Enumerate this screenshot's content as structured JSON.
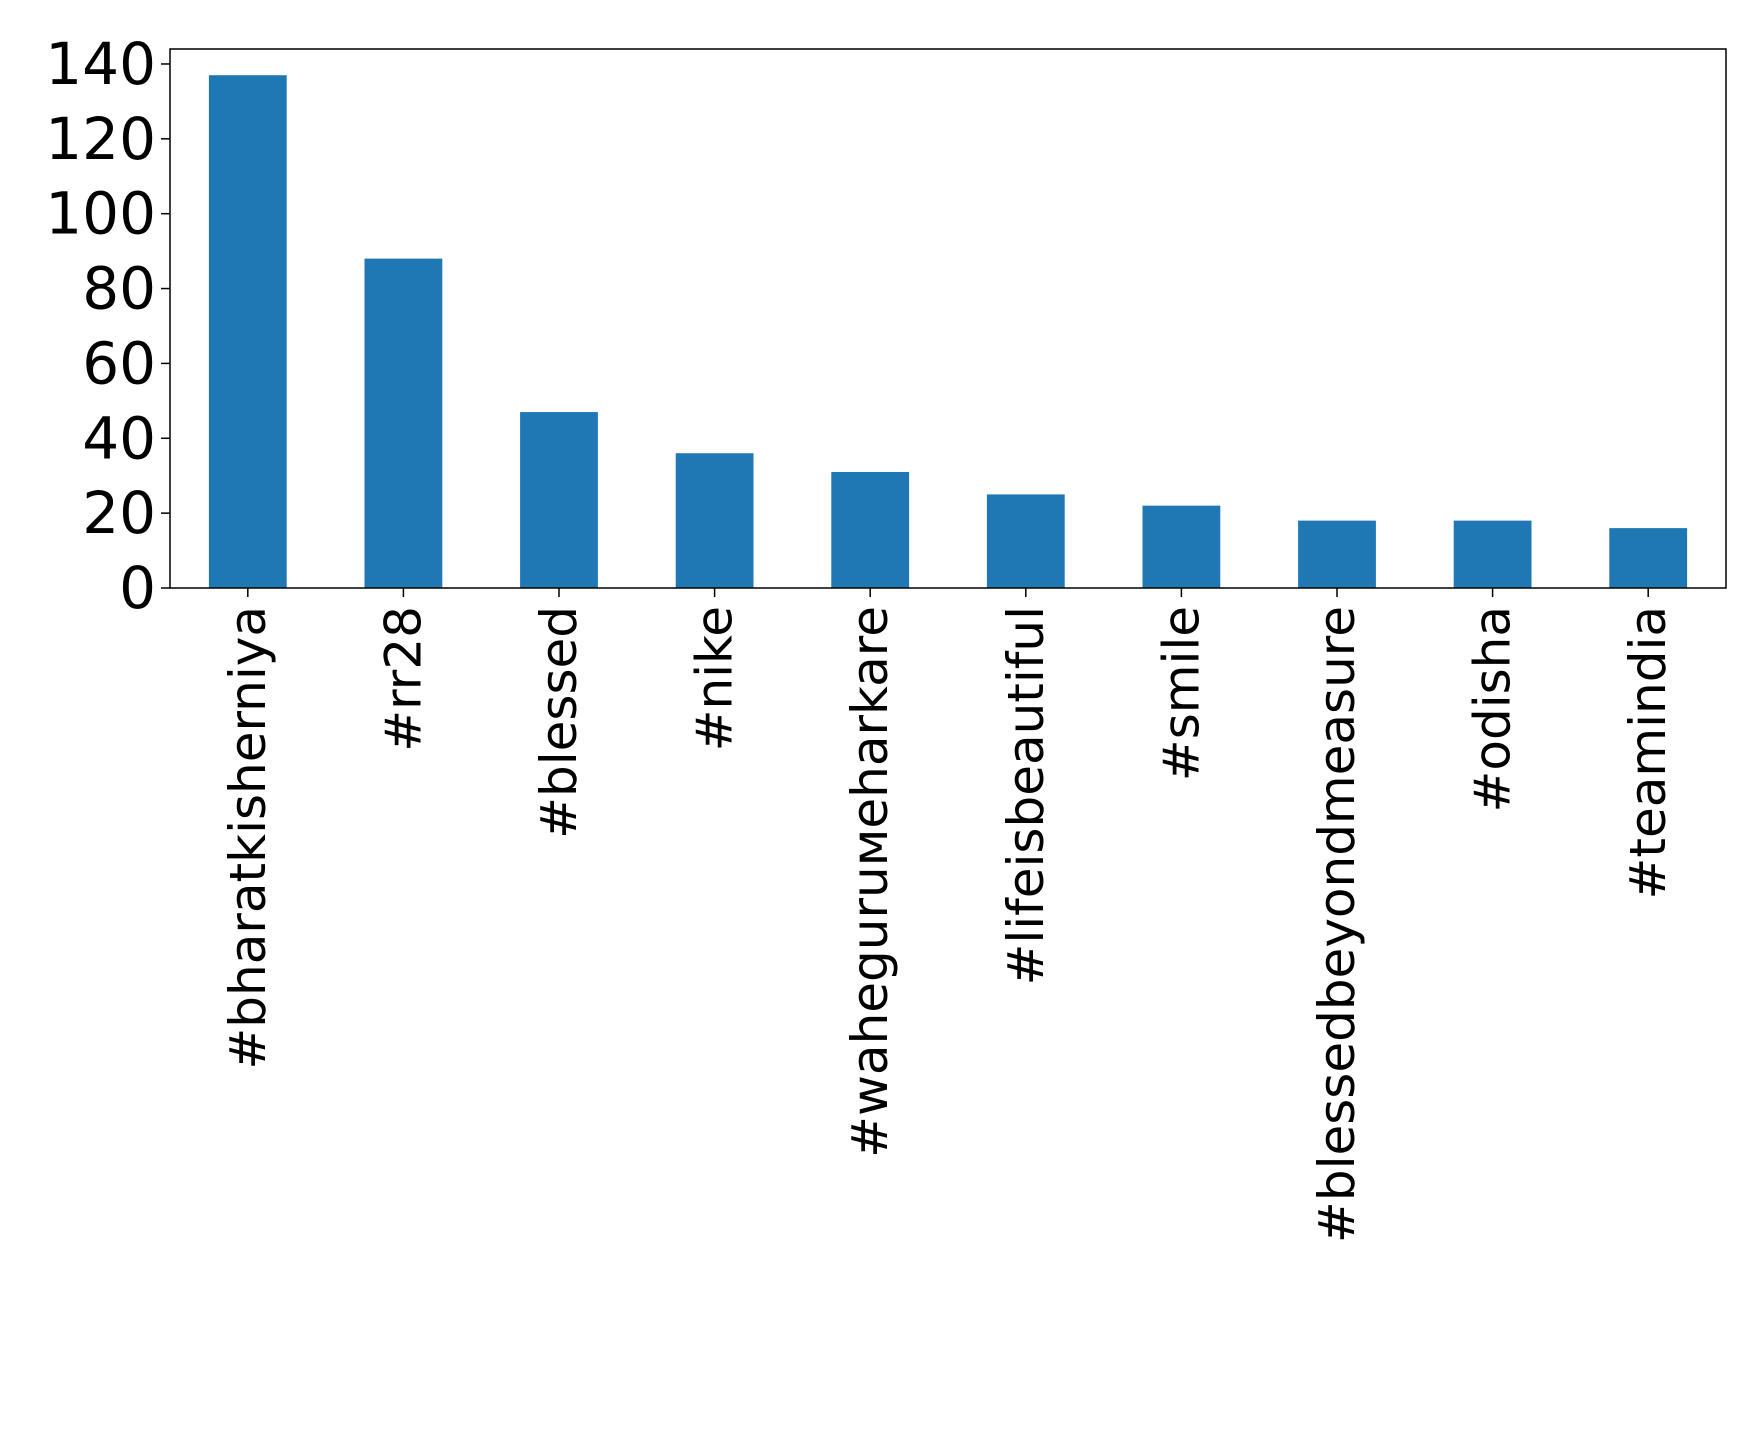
{
  "chart_data": {
    "type": "bar",
    "categories": [
      "#bharatkisherniya",
      "#rr28",
      "#blessed",
      "#nike",
      "#waheguruмeharkare",
      "#lifeisbeautiful",
      "#smile",
      "#blessedbeyondmeasure",
      "#odisha",
      "#teamindia"
    ],
    "values": [
      137,
      88,
      47,
      36,
      31,
      25,
      22,
      18,
      18,
      16
    ],
    "title": "",
    "xlabel": "",
    "ylabel": "",
    "ylim": [
      0,
      144
    ],
    "yticks": [
      0,
      20,
      40,
      60,
      80,
      100,
      120,
      140
    ],
    "grid": false,
    "legend": "none",
    "bar_color": "#1f77b4"
  }
}
